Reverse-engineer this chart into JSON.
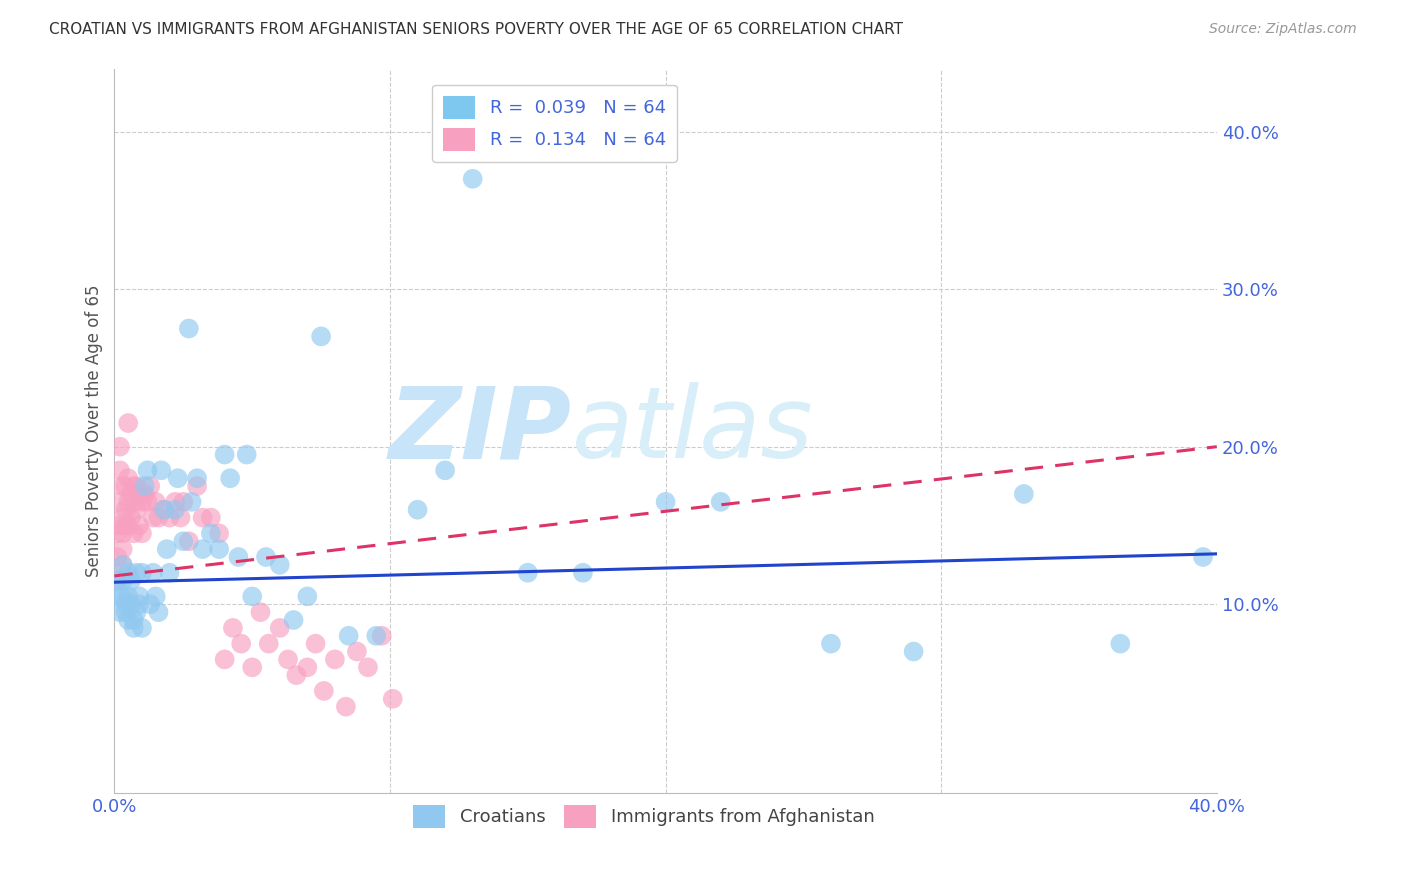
{
  "title": "CROATIAN VS IMMIGRANTS FROM AFGHANISTAN SENIORS POVERTY OVER THE AGE OF 65 CORRELATION CHART",
  "source": "Source: ZipAtlas.com",
  "ylabel": "Seniors Poverty Over the Age of 65",
  "xlim": [
    0.0,
    0.4
  ],
  "ylim": [
    -0.02,
    0.44
  ],
  "yticks": [
    0.0,
    0.1,
    0.2,
    0.3,
    0.4
  ],
  "ytick_labels": [
    "",
    "10.0%",
    "20.0%",
    "30.0%",
    "40.0%"
  ],
  "xticks": [
    0.0,
    0.1,
    0.2,
    0.3,
    0.4
  ],
  "xtick_labels": [
    "0.0%",
    "",
    "",
    "",
    "40.0%"
  ],
  "legend_color1": "#7ec8f0",
  "legend_color2": "#f8a0c0",
  "watermark_zip": "ZIP",
  "watermark_atlas": "atlas",
  "watermark_color": "#c8e4f8",
  "axis_color": "#4466dd",
  "grid_color": "#cccccc",
  "blue_dot_color": "#90c8f0",
  "pink_dot_color": "#f8a0c0",
  "blue_line_color": "#2244cc",
  "pink_line_color": "#dd3366",
  "blue_trend_x": [
    0.0,
    0.4
  ],
  "blue_trend_y": [
    0.114,
    0.132
  ],
  "pink_trend_x": [
    0.0,
    0.4
  ],
  "pink_trend_y": [
    0.118,
    0.2
  ],
  "croatians_x": [
    0.001,
    0.002,
    0.002,
    0.003,
    0.003,
    0.003,
    0.004,
    0.004,
    0.005,
    0.005,
    0.005,
    0.006,
    0.006,
    0.007,
    0.007,
    0.008,
    0.008,
    0.009,
    0.009,
    0.01,
    0.01,
    0.011,
    0.012,
    0.013,
    0.014,
    0.015,
    0.016,
    0.017,
    0.018,
    0.019,
    0.02,
    0.022,
    0.023,
    0.025,
    0.027,
    0.028,
    0.03,
    0.032,
    0.035,
    0.038,
    0.04,
    0.042,
    0.045,
    0.048,
    0.05,
    0.055,
    0.06,
    0.065,
    0.07,
    0.075,
    0.085,
    0.095,
    0.11,
    0.12,
    0.13,
    0.15,
    0.17,
    0.2,
    0.22,
    0.26,
    0.29,
    0.33,
    0.365,
    0.395
  ],
  "croatians_y": [
    0.115,
    0.105,
    0.095,
    0.125,
    0.105,
    0.115,
    0.1,
    0.095,
    0.12,
    0.105,
    0.09,
    0.115,
    0.1,
    0.09,
    0.085,
    0.12,
    0.095,
    0.105,
    0.1,
    0.12,
    0.085,
    0.175,
    0.185,
    0.1,
    0.12,
    0.105,
    0.095,
    0.185,
    0.16,
    0.135,
    0.12,
    0.16,
    0.18,
    0.14,
    0.275,
    0.165,
    0.18,
    0.135,
    0.145,
    0.135,
    0.195,
    0.18,
    0.13,
    0.195,
    0.105,
    0.13,
    0.125,
    0.09,
    0.105,
    0.27,
    0.08,
    0.08,
    0.16,
    0.185,
    0.37,
    0.12,
    0.12,
    0.165,
    0.165,
    0.075,
    0.07,
    0.17,
    0.075,
    0.13
  ],
  "afghan_x": [
    0.001,
    0.001,
    0.001,
    0.002,
    0.002,
    0.002,
    0.002,
    0.003,
    0.003,
    0.003,
    0.003,
    0.003,
    0.004,
    0.004,
    0.004,
    0.005,
    0.005,
    0.005,
    0.005,
    0.006,
    0.006,
    0.007,
    0.007,
    0.007,
    0.008,
    0.008,
    0.009,
    0.009,
    0.01,
    0.01,
    0.011,
    0.012,
    0.013,
    0.014,
    0.015,
    0.016,
    0.018,
    0.02,
    0.022,
    0.024,
    0.025,
    0.027,
    0.03,
    0.032,
    0.035,
    0.038,
    0.04,
    0.043,
    0.046,
    0.05,
    0.053,
    0.056,
    0.06,
    0.063,
    0.066,
    0.07,
    0.073,
    0.076,
    0.08,
    0.084,
    0.088,
    0.092,
    0.097,
    0.101
  ],
  "afghan_y": [
    0.145,
    0.13,
    0.115,
    0.2,
    0.185,
    0.165,
    0.15,
    0.175,
    0.155,
    0.145,
    0.135,
    0.125,
    0.175,
    0.16,
    0.15,
    0.215,
    0.18,
    0.165,
    0.15,
    0.17,
    0.155,
    0.175,
    0.165,
    0.145,
    0.175,
    0.16,
    0.17,
    0.15,
    0.165,
    0.145,
    0.17,
    0.165,
    0.175,
    0.155,
    0.165,
    0.155,
    0.16,
    0.155,
    0.165,
    0.155,
    0.165,
    0.14,
    0.175,
    0.155,
    0.155,
    0.145,
    0.065,
    0.085,
    0.075,
    0.06,
    0.095,
    0.075,
    0.085,
    0.065,
    0.055,
    0.06,
    0.075,
    0.045,
    0.065,
    0.035,
    0.07,
    0.06,
    0.08,
    0.04
  ]
}
